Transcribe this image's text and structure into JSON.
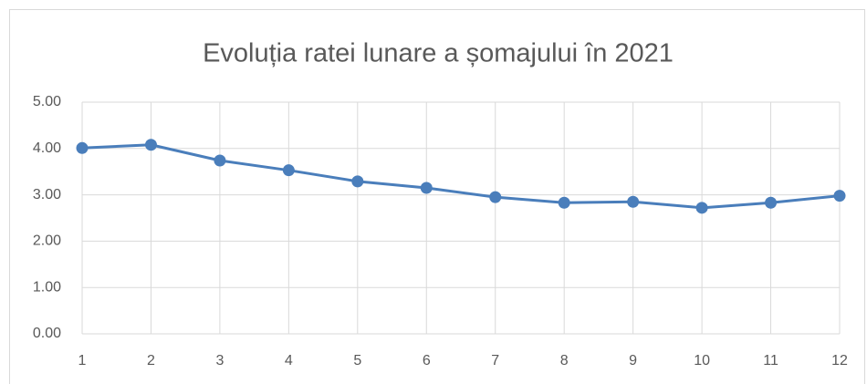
{
  "chart_data": {
    "type": "line",
    "title": "Evoluția ratei lunare a șomajului în 2021",
    "categories": [
      "1",
      "2",
      "3",
      "4",
      "5",
      "6",
      "7",
      "8",
      "9",
      "10",
      "11",
      "12"
    ],
    "series": [
      {
        "color": "#4a7ebb",
        "values": [
          4.01,
          4.08,
          3.74,
          3.53,
          3.29,
          3.15,
          2.95,
          2.83,
          2.85,
          2.72,
          2.83,
          2.98
        ]
      }
    ],
    "ylim": [
      0,
      5
    ],
    "yticks": [
      {
        "value": 0,
        "label": "0.00"
      },
      {
        "value": 1,
        "label": "1.00"
      },
      {
        "value": 2,
        "label": "2.00"
      },
      {
        "value": 3,
        "label": "3.00"
      },
      {
        "value": 4,
        "label": "4.00"
      },
      {
        "value": 5,
        "label": "5.00"
      }
    ],
    "grid": true
  }
}
